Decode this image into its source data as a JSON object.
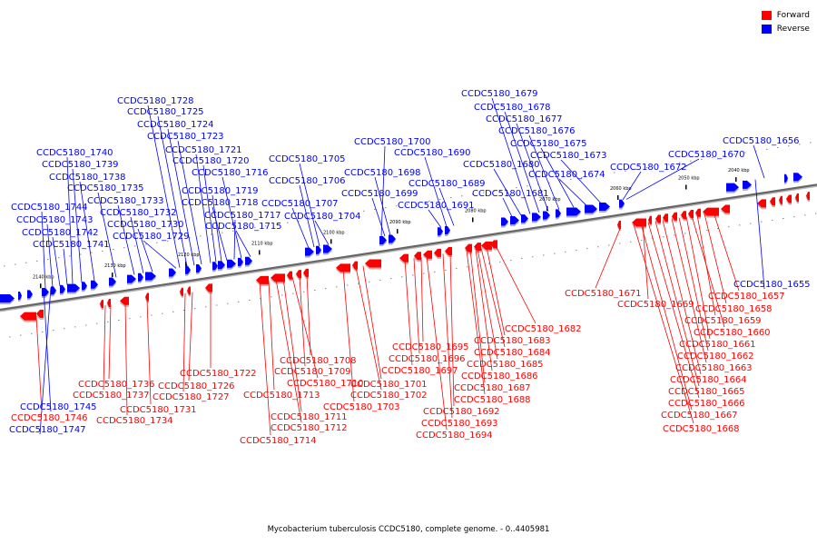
{
  "caption": "Mycobacterium tuberculosis CCDC5180, complete genome. - 0..4405981",
  "legend": {
    "forward_label": "Forward",
    "reverse_label": "Reverse",
    "forward_color": "#ff0000",
    "reverse_color": "#0000ff"
  },
  "ticks": [
    "2040 kbp",
    "2050 kbp",
    "2060 kbp",
    "2070 kbp",
    "2080 kbp",
    "2090 kbp",
    "2100 kbp",
    "2110 kbp",
    "2120 kbp",
    "2130 kbp",
    "2140 kbp"
  ],
  "genes_reverse": [
    "CCDC5180_1656",
    "CCDC5180_1670",
    "CCDC5180_1672",
    "CCDC5180_1673",
    "CCDC5180_1674",
    "CCDC5180_1675",
    "CCDC5180_1676",
    "CCDC5180_1677",
    "CCDC5180_1678",
    "CCDC5180_1679",
    "CCDC5180_1680",
    "CCDC5180_1681",
    "CCDC5180_1689",
    "CCDC5180_1690",
    "CCDC5180_1691",
    "CCDC5180_1698",
    "CCDC5180_1699",
    "CCDC5180_1700",
    "CCDC5180_1704",
    "CCDC5180_1705",
    "CCDC5180_1706",
    "CCDC5180_1707",
    "CCDC5180_1715",
    "CCDC5180_1716",
    "CCDC5180_1717",
    "CCDC5180_1718",
    "CCDC5180_1719",
    "CCDC5180_1720",
    "CCDC5180_1721",
    "CCDC5180_1723",
    "CCDC5180_1724",
    "CCDC5180_1725",
    "CCDC5180_1728",
    "CCDC5180_1729",
    "CCDC5180_1730",
    "CCDC5180_1732",
    "CCDC5180_1733",
    "CCDC5180_1735",
    "CCDC5180_1738",
    "CCDC5180_1739",
    "CCDC5180_1740",
    "CCDC5180_1741",
    "CCDC5180_1742",
    "CCDC5180_1743",
    "CCDC5180_1744",
    "CCDC5180_1655",
    "CCDC5180_1745",
    "CCDC5180_1747"
  ],
  "genes_forward": [
    "CCDC5180_1671",
    "CCDC5180_1669",
    "CCDC5180_1657",
    "CCDC5180_1658",
    "CCDC5180_1659",
    "CCDC5180_1660",
    "CCDC5180_1661",
    "CCDC5180_1662",
    "CCDC5180_1663",
    "CCDC5180_1664",
    "CCDC5180_1665",
    "CCDC5180_1666",
    "CCDC5180_1667",
    "CCDC5180_1668",
    "CCDC5180_1682",
    "CCDC5180_1683",
    "CCDC5180_1684",
    "CCDC5180_1685",
    "CCDC5180_1686",
    "CCDC5180_1687",
    "CCDC5180_1688",
    "CCDC5180_1692",
    "CCDC5180_1693",
    "CCDC5180_1694",
    "CCDC5180_1695",
    "CCDC5180_1696",
    "CCDC5180_1697",
    "CCDC5180_1701",
    "CCDC5180_1702",
    "CCDC5180_1703",
    "CCDC5180_1708",
    "CCDC5180_1709",
    "CCDC5180_1710",
    "CCDC5180_1711",
    "CCDC5180_1712",
    "CCDC5180_1713",
    "CCDC5180_1714",
    "CCDC5180_1722",
    "CCDC5180_1726",
    "CCDC5180_1727",
    "CCDC5180_1731",
    "CCDC5180_1734",
    "CCDC5180_1736",
    "CCDC5180_1737",
    "CCDC5180_1746"
  ]
}
